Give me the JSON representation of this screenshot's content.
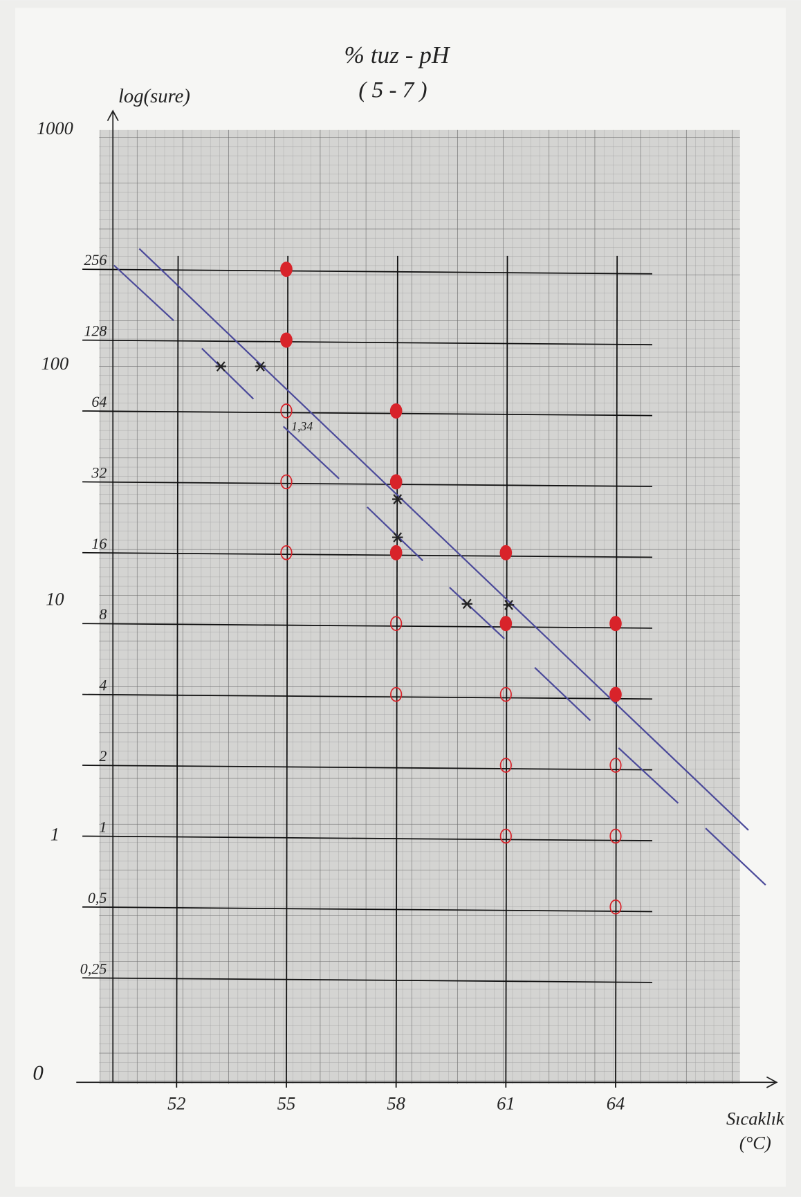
{
  "chart_data": {
    "type": "scatter",
    "title": "% tuz - pH",
    "subtitle": "( 5 - 7 )",
    "y_label": "log(sure)",
    "x_label": "Sıcaklık",
    "x_unit": "(°C)",
    "log_y": true,
    "xlim": [
      49.3,
      68.4
    ],
    "ylim": [
      0.09,
      1000
    ],
    "xticks": [
      52,
      55,
      58,
      61,
      64
    ],
    "y_decade_ticks": [
      1000,
      100,
      10,
      1
    ],
    "origin_label": "0",
    "yticks": [
      256,
      128,
      64,
      32,
      16,
      8,
      4,
      2,
      1,
      {
        "value": 0.5,
        "label": "0,5"
      },
      {
        "value": 0.25,
        "label": "0,25"
      }
    ],
    "grid": true,
    "series": [
      {
        "color": "#d8232a",
        "marker": "filled",
        "x": [
          55,
          55,
          58,
          58,
          58,
          61,
          61,
          64,
          64
        ],
        "values": [
          256,
          128,
          64,
          32,
          16,
          16,
          8,
          8,
          4
        ]
      },
      {
        "color": "#d8232a",
        "marker": "open",
        "x": [
          55,
          55,
          55,
          58,
          58,
          61,
          61,
          61,
          64,
          64,
          64
        ],
        "values": [
          64,
          32,
          16,
          8,
          4,
          4,
          2,
          1,
          2,
          1,
          0.5
        ]
      },
      {
        "color": "#222222",
        "marker": "star",
        "x": [
          53.21,
          54.29,
          58.04,
          58.04,
          59.94,
          61.08
        ],
        "values": [
          99,
          99,
          27,
          18.6,
          9.7,
          9.6
        ]
      }
    ],
    "lines": [
      {
        "color": "#4b4a9a",
        "x": [
          50.98,
          67.63
        ],
        "values": [
          313,
          1.06
        ]
      },
      {
        "color": "#4b4a9a",
        "x": [
          50.29,
          51.92
        ],
        "values": [
          266,
          155
        ]
      },
      {
        "color": "#4b4a9a",
        "x": [
          52.69,
          54.1
        ],
        "values": [
          118,
          72
        ]
      },
      {
        "color": "#4b4a9a",
        "x": [
          54.92,
          56.44
        ],
        "values": [
          55,
          33
        ]
      },
      {
        "color": "#4b4a9a",
        "x": [
          57.21,
          58.73
        ],
        "values": [
          25,
          14.8
        ]
      },
      {
        "color": "#4b4a9a",
        "x": [
          59.46,
          60.96
        ],
        "values": [
          11.4,
          6.9
        ]
      },
      {
        "color": "#4b4a9a",
        "x": [
          61.79,
          63.31
        ],
        "values": [
          5.2,
          3.1
        ]
      },
      {
        "color": "#4b4a9a",
        "x": [
          64.08,
          65.71
        ],
        "values": [
          2.37,
          1.38
        ]
      },
      {
        "color": "#4b4a9a",
        "x": [
          66.46,
          68.1
        ],
        "values": [
          1.08,
          0.62
        ]
      }
    ],
    "annotation": {
      "text": "1,34",
      "color": "#d8232a"
    }
  }
}
